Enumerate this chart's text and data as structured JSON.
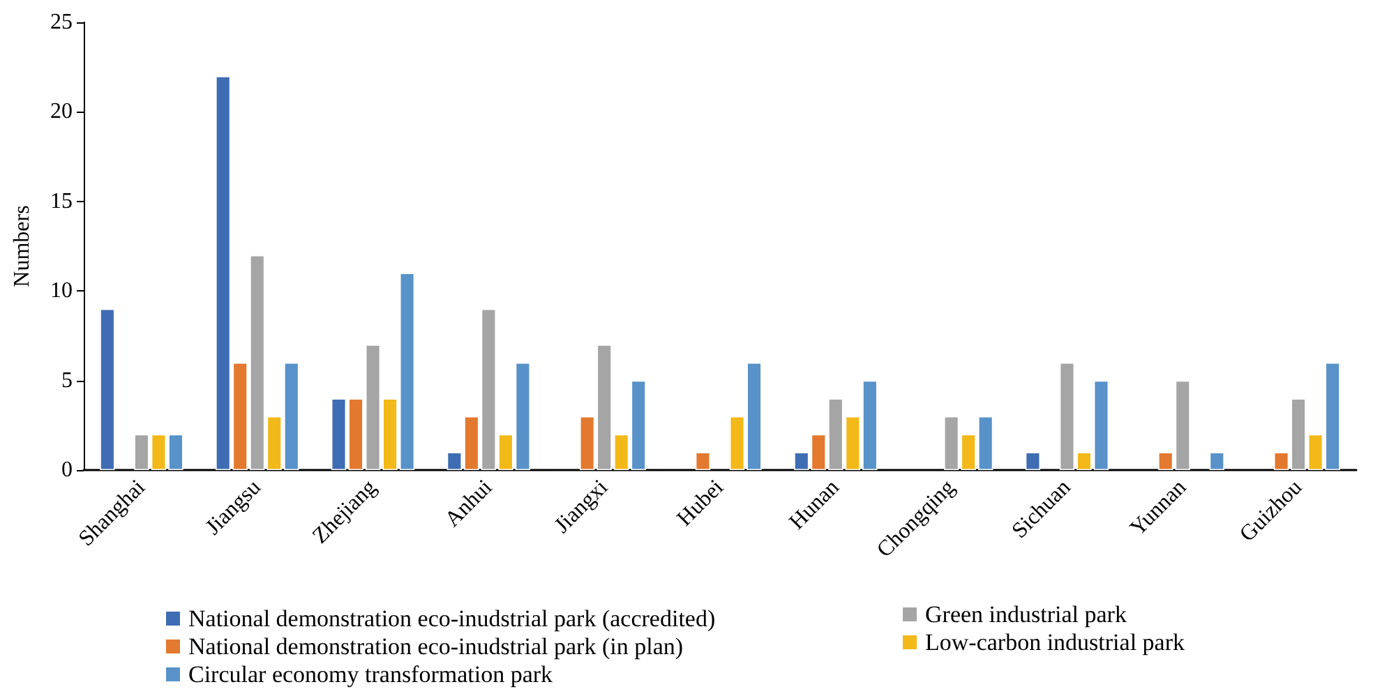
{
  "chart_data": {
    "type": "bar",
    "ylabel": "Numbers",
    "categories": [
      "Shanghai",
      "Jiangsu",
      "Zhejiang",
      "Anhui",
      "Jiangxi",
      "Hubei",
      "Hunan",
      "Chongqing",
      "Sichuan",
      "Yunnan",
      "Guizhou"
    ],
    "series": [
      {
        "name": "National demonstration eco-inudstrial park (accredited)",
        "color": "#3f6db3",
        "values": [
          9,
          22,
          4,
          1,
          null,
          null,
          1,
          null,
          1,
          null,
          null
        ]
      },
      {
        "name": "National demonstration eco-inudstrial park (in plan)",
        "color": "#e2792f",
        "values": [
          null,
          6,
          4,
          3,
          3,
          1,
          2,
          null,
          null,
          1,
          1
        ]
      },
      {
        "name": "Green industrial park",
        "color": "#a5a5a5",
        "values": [
          2,
          12,
          7,
          9,
          7,
          null,
          4,
          3,
          6,
          5,
          4
        ]
      },
      {
        "name": "Low-carbon industrial park",
        "color": "#f2b918",
        "values": [
          2,
          3,
          4,
          2,
          2,
          3,
          3,
          2,
          1,
          null,
          2
        ]
      },
      {
        "name": "Circular economy transformation park",
        "color": "#5892c9",
        "values": [
          2,
          6,
          11,
          6,
          5,
          6,
          5,
          3,
          5,
          1,
          6
        ]
      }
    ],
    "ylim": [
      0,
      25
    ],
    "yticks": [
      0,
      5,
      10,
      15,
      20,
      25
    ],
    "grid": false,
    "legend": "bottom"
  }
}
